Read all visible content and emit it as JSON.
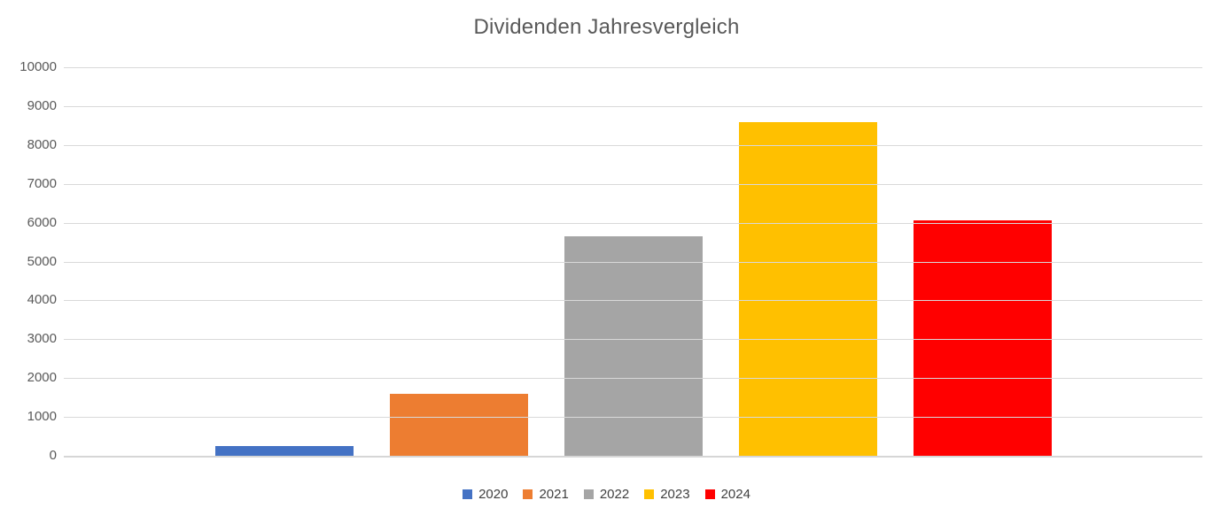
{
  "chart_data": {
    "type": "bar",
    "title": "Dividenden Jahresvergleich",
    "categories": [
      "2020",
      "2021",
      "2022",
      "2023",
      "2024"
    ],
    "series": [
      {
        "name": "2020",
        "value": 260,
        "color": "#4472C4"
      },
      {
        "name": "2021",
        "value": 1600,
        "color": "#ED7D31"
      },
      {
        "name": "2022",
        "value": 5640,
        "color": "#A5A5A5"
      },
      {
        "name": "2023",
        "value": 8580,
        "color": "#FFC000"
      },
      {
        "name": "2024",
        "value": 6070,
        "color": "#FF0000"
      }
    ],
    "xlabel": "",
    "ylabel": "",
    "ylim": [
      0,
      10000
    ],
    "ytick_step": 1000,
    "ytick_labels": [
      "0",
      "1000",
      "2000",
      "3000",
      "4000",
      "5000",
      "6000",
      "7000",
      "8000",
      "9000",
      "10000"
    ],
    "grid": true,
    "legend_position": "bottom",
    "legend_entries": [
      "2020",
      "2021",
      "2022",
      "2023",
      "2024"
    ],
    "colors": {
      "background": "#FFFFFF",
      "gridline": "#D9D9D9",
      "axis_line": "#D6D6D6",
      "title_text": "#595959",
      "tick_text": "#595959",
      "legend_text": "#404040"
    }
  }
}
